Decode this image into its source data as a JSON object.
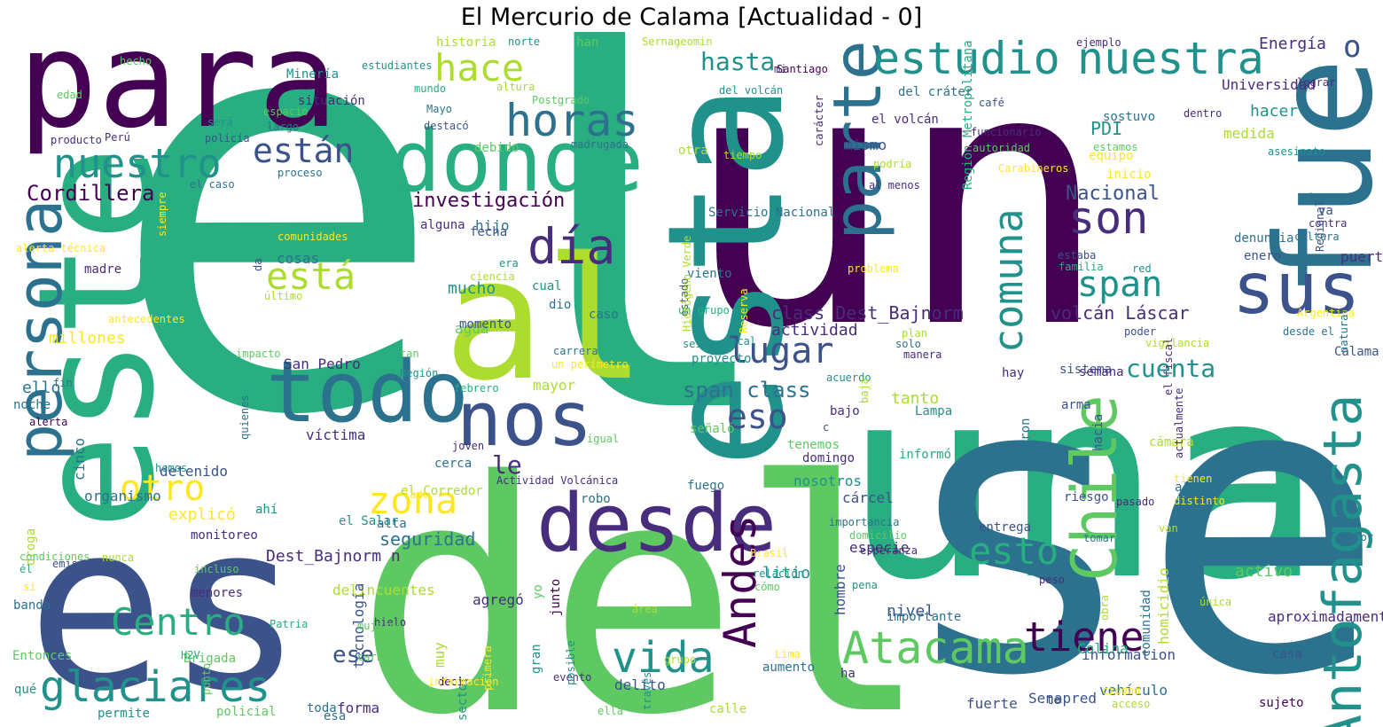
{
  "title": "El Mercurio de Calama [Actualidad - 0]",
  "palette": [
    "#440154",
    "#472d7b",
    "#3b528b",
    "#2c728e",
    "#21918c",
    "#28ae80",
    "#5ec962",
    "#addc30",
    "#fde725"
  ],
  "words": [
    "el",
    "un",
    "una",
    "se",
    "del",
    "es",
    "este",
    "al",
    "para",
    "de",
    "esta",
    "fue",
    "todo",
    "nos",
    "donde",
    "desde",
    "persona",
    "Chile",
    "su",
    "parte",
    "sus",
    "Antofagasta",
    "Atacama",
    "día",
    "nuestra",
    "estudio",
    "son",
    "horas",
    "hace",
    "nuestro",
    "zona",
    "Andes",
    "tiene",
    "está",
    "vida",
    "glaciares",
    "comuna",
    "otro",
    "Centro",
    "span",
    "están",
    "lugar",
    "esto",
    "eso",
    "hasta",
    "cuenta",
    "investigación",
    "Cordillera",
    "class Dest_Bajnorm",
    "span class",
    "le",
    "Nacional",
    "volcán Láscar",
    "o",
    "PDI",
    "Energía",
    "Región Metropolitana",
    "seguridad",
    "actividad",
    "víctima",
    "San Pedro",
    "ello",
    "millones",
    "explicó",
    "mucho",
    "agua",
    "mayor",
    "Dest_Bajnorm n",
    "ese",
    "nivel",
    "hombre",
    "Colina",
    "fueron",
    "tanto",
    "homicidio",
    "medida",
    "quien",
    "Universidad",
    "hacer",
    "Senapred",
    "forma",
    "importante",
    "vehículo",
    "aproximadamente",
    "entrega",
    "especie",
    "sujeto",
    "cárcel",
    "nosotros",
    "domingo",
    "proyecto",
    "viento",
    "delito",
    "esa",
    "sector",
    "monitoreo",
    "menores",
    "banda",
    "noche",
    "cinco",
    "organismo",
    "detenido",
    "hijo",
    "cosas",
    "madre",
    "Entonces",
    "delincuentes",
    "tecnología",
    "litio",
    "yo",
    "muy",
    "gran",
    "agregó",
    "junto",
    "te",
    "ha",
    "information",
    "casa",
    "comunidad",
    "algo",
    "riesgo",
    "cámara",
    "arma",
    "hacia",
    "sábado",
    "va",
    "denuncia",
    "enero",
    "puerto",
    "Calama",
    "sistema",
    "semana",
    "hay",
    "Lampa",
    "informó",
    "tenemos",
    "bajo",
    "fuego",
    "señaló",
    "cual",
    "dio",
    "momento",
    "fecha",
    "era",
    "alguna",
    "cerca",
    "joven",
    "fin",
    "febrero",
    "Región",
    "tan",
    "caso",
    "aumento",
    "relación",
    "cómo",
    "decir",
    "hielo",
    "mujeres",
    "Patria",
    "Brigada",
    "H2V",
    "punto",
    "evento",
    "calle",
    "policial",
    "permite",
    "qué",
    "toda",
    "el Salar",
    "el Corredor",
    "alta",
    "ahí",
    "robo",
    "otra",
    "mismo",
    "el volcán",
    "del cráter",
    "del volcán",
    "Santiago",
    "mi",
    "han",
    "Sernageomin",
    "historia",
    "norte",
    "Minería",
    "estudiantes",
    "hecho",
    "edad",
    "producto",
    "Perú",
    "policía",
    "será",
    "espacio",
    "largo",
    "situación",
    "debido",
    "madrugada",
    "destacó",
    "Mayo",
    "mundo",
    "altura",
    "Postgrado",
    "proceso",
    "el caso",
    "siempre",
    "alerta técnica",
    "comunidades",
    "da",
    "último",
    "antecedentes",
    "impacto",
    "ciencia",
    "estado",
    "un grupo",
    "Hidrógeno Verde",
    "Reserva",
    "seis",
    "local",
    "carrera",
    "un perímetro",
    "lado",
    "Actividad Volcánica",
    "igual",
    "hemos",
    "alerta",
    "quienes",
    "droga",
    "emisiones",
    "condiciones",
    "él",
    "si",
    "nunca",
    "incluso",
    "área",
    "Brasil",
    "posible",
    "carne",
    "primera",
    "Lima",
    "información",
    "grupo",
    "través",
    "ella",
    "acceso",
    "ciudad",
    "van",
    "distinto",
    "tienen",
    "pasado",
    "valor",
    "obra",
    "única",
    "tomar",
    "peso",
    "pena",
    "esperanza",
    "domicilio",
    "importancia",
    "activo",
    "poder",
    "vigilancia",
    "desde el",
    "Argentina",
    "natural",
    "el fiscal",
    "actualmente",
    "contra",
    "familia",
    "red",
    "estaba",
    "cultura",
    "Regional",
    "asesinato",
    "estamos",
    "autoridad",
    "funcionario",
    "café",
    "dentro",
    "lograr",
    "ejemplo",
    "carácter",
    "podría",
    "al menos",
    "Carabineros",
    "tiempo",
    "Servicio Nacional",
    "inicio",
    "sostuvo",
    "equipo",
    "plan",
    "solo",
    "manera",
    "acuerdo",
    "baja",
    "c",
    "problema",
    "fuerte",
    "programa",
    "ubicado",
    "el director",
    "se ha",
    "década",
    "importante"
  ]
}
